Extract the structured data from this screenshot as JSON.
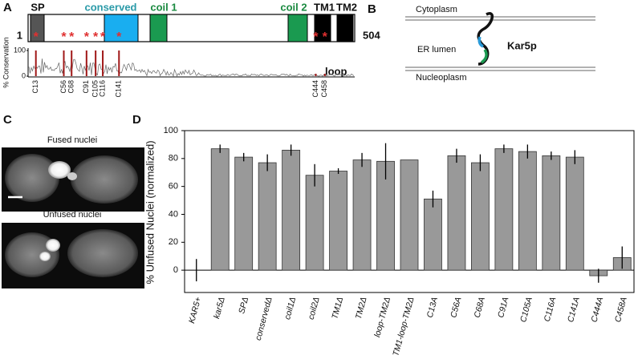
{
  "panel_a": {
    "letter": "A",
    "domains": [
      "SP",
      "conserved",
      "coil 1",
      "coil 2",
      "TM1",
      "TM2"
    ],
    "start": 1,
    "end": 504,
    "loop": "loop",
    "marker": "*",
    "y_label": "% Conservation",
    "yticks": [
      0,
      100
    ],
    "residues": [
      {
        "value": 13,
        "label": "C13"
      },
      {
        "value": 56,
        "label": "C56"
      },
      {
        "value": 68,
        "label": "C68"
      },
      {
        "value": 91,
        "label": "C91"
      },
      {
        "value": 105,
        "label": "C105"
      },
      {
        "value": 116,
        "label": "C116"
      },
      {
        "value": 141,
        "label": "C141"
      },
      {
        "value": 444,
        "label": "C444"
      },
      {
        "value": 458,
        "label": "C458"
      }
    ]
  },
  "panel_b": {
    "letter": "B",
    "cytoplasm": "Cytoplasm",
    "lumen": "ER lumen",
    "protein": "Kar5p",
    "nucleoplasm": "Nucleoplasm"
  },
  "panel_c": {
    "letter": "C",
    "fused": "Fused nuclei",
    "unfused": "Unfused nuclei"
  },
  "chart_data": {
    "type": "bar",
    "letter": "D",
    "y_label": "% Unfused Nuclei (normalized)",
    "categories": [
      "KAR5+",
      "kar5Δ",
      "SPΔ",
      "conservedΔ",
      "coil1Δ",
      "coil2Δ",
      "TM1Δ",
      "TM2Δ",
      "loop-TM2Δ",
      "TM1-loop-TM2Δ",
      "C13A",
      "C56A",
      "C68A",
      "C91A",
      "C105A",
      "C116A",
      "C141A",
      "C444A",
      "C458A"
    ],
    "values": [
      0,
      87,
      81,
      77,
      86,
      68,
      71,
      79,
      78,
      79,
      51,
      82,
      77,
      87,
      85,
      82,
      81,
      -4,
      9
    ],
    "errors": [
      8,
      3,
      3,
      6,
      4,
      8,
      2,
      5,
      13,
      null,
      6,
      5,
      6,
      3,
      5,
      3,
      5,
      5,
      8
    ],
    "color": "#999999",
    "ylim": [
      -16,
      100
    ],
    "yticks": [
      0,
      20,
      40,
      60,
      80,
      100
    ]
  }
}
